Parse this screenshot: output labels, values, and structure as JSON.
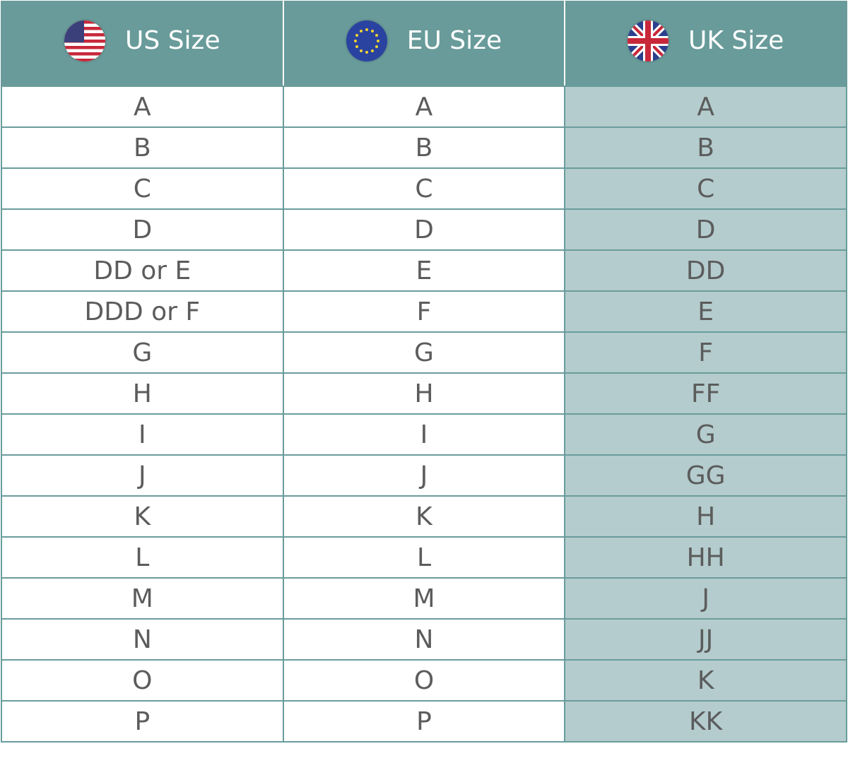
{
  "headers": [
    {
      "label": "US Size",
      "icon": "us-flag-icon"
    },
    {
      "label": "EU Size",
      "icon": "eu-flag-icon"
    },
    {
      "label": "UK Size",
      "icon": "uk-flag-icon"
    }
  ],
  "colors": {
    "header_bg": "#689b9a",
    "uk_column_bg": "#b4cccd",
    "border": "#6a9c9c",
    "text": "#5c5c5c"
  },
  "rows": [
    [
      "A",
      "A",
      "A"
    ],
    [
      "B",
      "B",
      "B"
    ],
    [
      "C",
      "C",
      "C"
    ],
    [
      "D",
      "D",
      "D"
    ],
    [
      "DD or E",
      "E",
      "DD"
    ],
    [
      "DDD or F",
      "F",
      "E"
    ],
    [
      "G",
      "G",
      "F"
    ],
    [
      "H",
      "H",
      "FF"
    ],
    [
      "I",
      "I",
      "G"
    ],
    [
      "J",
      "J",
      "GG"
    ],
    [
      "K",
      "K",
      "H"
    ],
    [
      "L",
      "L",
      "HH"
    ],
    [
      "M",
      "M",
      "J"
    ],
    [
      "N",
      "N",
      "JJ"
    ],
    [
      "O",
      "O",
      "K"
    ],
    [
      "P",
      "P",
      "KK"
    ]
  ]
}
